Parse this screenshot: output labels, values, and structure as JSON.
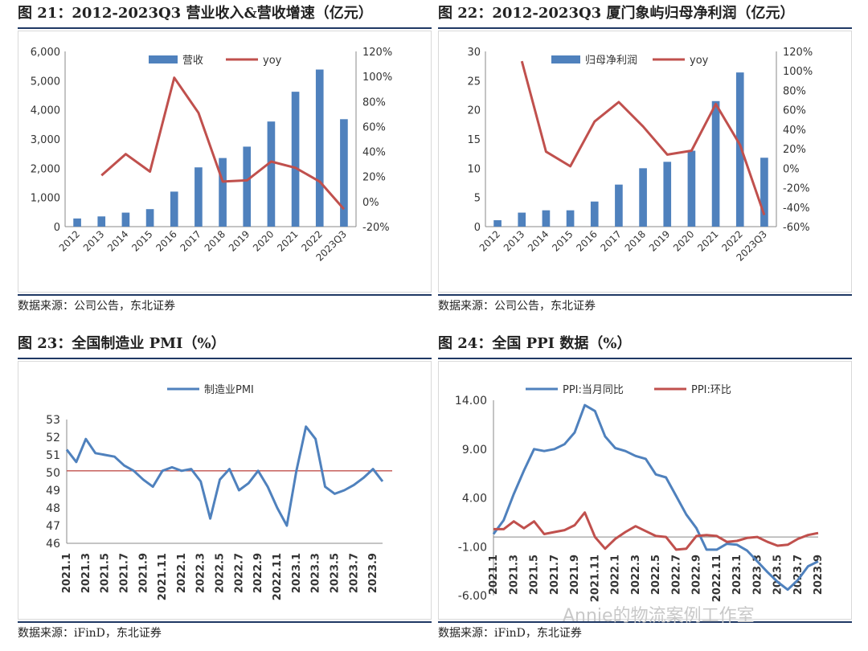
{
  "panels": [
    {
      "title": "图 21：2012-2023Q3 营业收入&营收增速（亿元）",
      "source": "数据来源：公司公告，东北证券"
    },
    {
      "title": "图 22：2012-2023Q3 厦门象屿归母净利润（亿元）",
      "source": "数据来源：公司公告，东北证券"
    },
    {
      "title": "图 23：全国制造业 PMI（%）",
      "source": "数据来源：iFinD，东北证券"
    },
    {
      "title": "图 24：全国 PPI 数据（%）",
      "source": "数据来源：iFinD，东北证券"
    }
  ],
  "watermark": "Annie的物流案例工作室",
  "colors": {
    "bar": "#4f81bd",
    "line_red": "#c0504d",
    "line_blue": "#4f81bd"
  },
  "chart_data": [
    {
      "type": "bar",
      "categories": [
        "2012",
        "2013",
        "2014",
        "2015",
        "2016",
        "2017",
        "2018",
        "2019",
        "2020",
        "2021",
        "2022",
        "2023Q3"
      ],
      "series": [
        {
          "name": "营收",
          "type": "bar",
          "axis": "left",
          "values": [
            280,
            350,
            480,
            600,
            1200,
            2030,
            2350,
            2740,
            3600,
            4620,
            5380,
            3680
          ]
        },
        {
          "name": "yoy",
          "type": "line",
          "axis": "right",
          "values": [
            null,
            0.21,
            0.38,
            0.24,
            0.99,
            0.71,
            0.16,
            0.17,
            0.32,
            0.27,
            0.16,
            -0.06
          ]
        }
      ],
      "yticks_left": [
        "0",
        "1,000",
        "2,000",
        "3,000",
        "4,000",
        "5,000",
        "6,000"
      ],
      "yticks_right": [
        "-20%",
        "0%",
        "20%",
        "40%",
        "60%",
        "80%",
        "100%",
        "120%"
      ],
      "ylim_left": [
        0,
        6000
      ],
      "ylim_right": [
        -0.2,
        1.2
      ],
      "legend": "top"
    },
    {
      "type": "bar",
      "categories": [
        "2012",
        "2013",
        "2014",
        "2015",
        "2016",
        "2017",
        "2018",
        "2019",
        "2020",
        "2021",
        "2022",
        "2023Q3"
      ],
      "series": [
        {
          "name": "归母净利润",
          "type": "bar",
          "axis": "left",
          "values": [
            1.1,
            2.4,
            2.8,
            2.8,
            4.3,
            7.2,
            10.0,
            11.1,
            13.0,
            21.5,
            26.4,
            11.8
          ]
        },
        {
          "name": "yoy",
          "type": "line",
          "axis": "right",
          "values": [
            null,
            1.1,
            0.17,
            0.02,
            0.48,
            0.68,
            0.43,
            0.14,
            0.18,
            0.66,
            0.24,
            -0.48
          ]
        }
      ],
      "yticks_left": [
        "0",
        "5",
        "10",
        "15",
        "20",
        "25",
        "30"
      ],
      "yticks_right": [
        "-60%",
        "-40%",
        "-20%",
        "0%",
        "20%",
        "40%",
        "60%",
        "80%",
        "100%",
        "120%"
      ],
      "ylim_left": [
        0,
        30
      ],
      "ylim_right": [
        -0.6,
        1.2
      ],
      "legend": "top"
    },
    {
      "type": "line",
      "x": [
        "2021.1",
        "2021.2",
        "2021.3",
        "2021.4",
        "2021.5",
        "2021.6",
        "2021.7",
        "2021.8",
        "2021.9",
        "2021.10",
        "2021.11",
        "2021.12",
        "2022.1",
        "2022.2",
        "2022.3",
        "2022.4",
        "2022.5",
        "2022.6",
        "2022.7",
        "2022.8",
        "2022.9",
        "2022.10",
        "2022.11",
        "2022.12",
        "2023.1",
        "2023.2",
        "2023.3",
        "2023.4",
        "2023.5",
        "2023.6",
        "2023.7",
        "2023.8",
        "2023.9",
        "2023.10"
      ],
      "xticks": [
        "2021.1",
        "2021.3",
        "2021.5",
        "2021.7",
        "2021.9",
        "2021.11",
        "2022.1",
        "2022.3",
        "2022.5",
        "2022.7",
        "2022.9",
        "2022.11",
        "2023.1",
        "2023.3",
        "2023.5",
        "2023.7",
        "2023.9"
      ],
      "series": [
        {
          "name": "制造业PMI",
          "values": [
            51.3,
            50.6,
            51.9,
            51.1,
            51.0,
            50.9,
            50.4,
            50.1,
            49.6,
            49.2,
            50.1,
            50.3,
            50.1,
            50.2,
            49.5,
            47.4,
            49.6,
            50.2,
            49.0,
            49.4,
            50.1,
            49.2,
            48.0,
            47.0,
            50.1,
            52.6,
            51.9,
            49.2,
            48.8,
            49.0,
            49.3,
            49.7,
            50.2,
            49.5
          ]
        }
      ],
      "reference_line": 50.1,
      "yticks": [
        "46",
        "47",
        "48",
        "49",
        "50",
        "51",
        "52",
        "53"
      ],
      "ylim": [
        46,
        53
      ],
      "legend": "top"
    },
    {
      "type": "line",
      "x": [
        "2021.1",
        "2021.2",
        "2021.3",
        "2021.4",
        "2021.5",
        "2021.6",
        "2021.7",
        "2021.8",
        "2021.9",
        "2021.10",
        "2021.11",
        "2021.12",
        "2022.1",
        "2022.2",
        "2022.3",
        "2022.4",
        "2022.5",
        "2022.6",
        "2022.7",
        "2022.8",
        "2022.9",
        "2022.10",
        "2022.11",
        "2022.12",
        "2023.1",
        "2023.2",
        "2023.3",
        "2023.4",
        "2023.5",
        "2023.6",
        "2023.7",
        "2023.8",
        "2023.9"
      ],
      "xticks": [
        "2021.1",
        "2021.3",
        "2021.5",
        "2021.7",
        "2021.9",
        "2021.11",
        "2022.1",
        "2022.3",
        "2022.5",
        "2022.7",
        "2022.9",
        "2022.11",
        "2023.1",
        "2023.3",
        "2023.5",
        "2023.7",
        "2023.9"
      ],
      "series": [
        {
          "name": "PPI:当月同比",
          "values": [
            0.3,
            1.7,
            4.4,
            6.8,
            9.0,
            8.8,
            9.0,
            9.5,
            10.7,
            13.5,
            12.9,
            10.3,
            9.1,
            8.8,
            8.3,
            8.0,
            6.4,
            6.1,
            4.2,
            2.3,
            0.9,
            -1.3,
            -1.3,
            -0.7,
            -0.8,
            -1.4,
            -2.5,
            -3.6,
            -4.6,
            -5.4,
            -4.4,
            -3.0,
            -2.5
          ]
        },
        {
          "name": "PPI:环比",
          "values": [
            0.8,
            0.8,
            1.6,
            0.9,
            1.6,
            0.3,
            0.5,
            0.7,
            1.2,
            2.5,
            0.0,
            -1.2,
            -0.2,
            0.5,
            1.1,
            0.6,
            0.1,
            0.0,
            -1.3,
            -1.2,
            0.1,
            0.2,
            0.1,
            -0.5,
            -0.4,
            -0.1,
            0.0,
            -0.5,
            -0.9,
            -0.8,
            -0.2,
            0.2,
            0.4
          ]
        }
      ],
      "yticks": [
        "-6.00",
        "-1.00",
        "4.00",
        "9.00",
        "14.00"
      ],
      "ylim": [
        -6,
        14
      ],
      "legend": "top"
    }
  ]
}
